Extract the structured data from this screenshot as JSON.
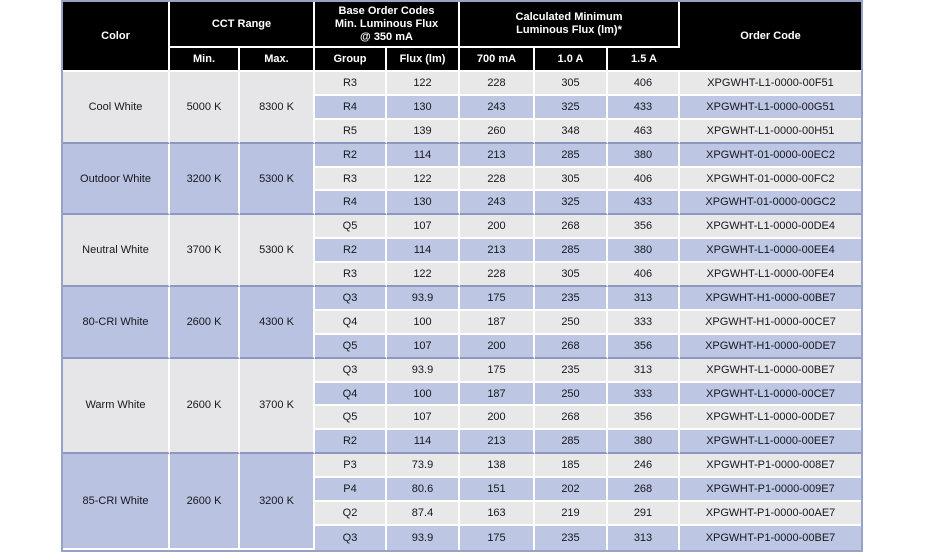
{
  "table": {
    "header": {
      "color": "Color",
      "cct_range": "CCT Range",
      "base_order_codes": "Base Order Codes\nMin. Luminous Flux\n@ 350 mA",
      "calculated_minimum": "Calculated Minimum\nLuminous Flux (lm)*",
      "order_code": "Order Code",
      "min": "Min.",
      "max": "Max.",
      "group": "Group",
      "flux_lm": "Flux (lm)",
      "a700": "700 mA",
      "a1000": "1.0 A",
      "a1500": "1.5 A"
    },
    "groups": [
      {
        "color": "Cool White",
        "cct_min": "5000 K",
        "cct_max": "8300 K",
        "rows": [
          {
            "group": "R3",
            "flux": "122",
            "f700": "228",
            "f1000": "305",
            "f1500": "406",
            "order_code": "XPGWHT-L1-0000-00F51"
          },
          {
            "group": "R4",
            "flux": "130",
            "f700": "243",
            "f1000": "325",
            "f1500": "433",
            "order_code": "XPGWHT-L1-0000-00G51"
          },
          {
            "group": "R5",
            "flux": "139",
            "f700": "260",
            "f1000": "348",
            "f1500": "463",
            "order_code": "XPGWHT-L1-0000-00H51"
          }
        ]
      },
      {
        "color": "Outdoor White",
        "cct_min": "3200 K",
        "cct_max": "5300 K",
        "rows": [
          {
            "group": "R2",
            "flux": "114",
            "f700": "213",
            "f1000": "285",
            "f1500": "380",
            "order_code": "XPGWHT-01-0000-00EC2"
          },
          {
            "group": "R3",
            "flux": "122",
            "f700": "228",
            "f1000": "305",
            "f1500": "406",
            "order_code": "XPGWHT-01-0000-00FC2"
          },
          {
            "group": "R4",
            "flux": "130",
            "f700": "243",
            "f1000": "325",
            "f1500": "433",
            "order_code": "XPGWHT-01-0000-00GC2"
          }
        ]
      },
      {
        "color": "Neutral White",
        "cct_min": "3700 K",
        "cct_max": "5300 K",
        "rows": [
          {
            "group": "Q5",
            "flux": "107",
            "f700": "200",
            "f1000": "268",
            "f1500": "356",
            "order_code": "XPGWHT-L1-0000-00DE4"
          },
          {
            "group": "R2",
            "flux": "114",
            "f700": "213",
            "f1000": "285",
            "f1500": "380",
            "order_code": "XPGWHT-L1-0000-00EE4"
          },
          {
            "group": "R3",
            "flux": "122",
            "f700": "228",
            "f1000": "305",
            "f1500": "406",
            "order_code": "XPGWHT-L1-0000-00FE4"
          }
        ]
      },
      {
        "color": "80-CRI White",
        "cct_min": "2600 K",
        "cct_max": "4300 K",
        "rows": [
          {
            "group": "Q3",
            "flux": "93.9",
            "f700": "175",
            "f1000": "235",
            "f1500": "313",
            "order_code": "XPGWHT-H1-0000-00BE7"
          },
          {
            "group": "Q4",
            "flux": "100",
            "f700": "187",
            "f1000": "250",
            "f1500": "333",
            "order_code": "XPGWHT-H1-0000-00CE7"
          },
          {
            "group": "Q5",
            "flux": "107",
            "f700": "200",
            "f1000": "268",
            "f1500": "356",
            "order_code": "XPGWHT-H1-0000-00DE7"
          }
        ]
      },
      {
        "color": "Warm White",
        "cct_min": "2600 K",
        "cct_max": "3700 K",
        "rows": [
          {
            "group": "Q3",
            "flux": "93.9",
            "f700": "175",
            "f1000": "235",
            "f1500": "313",
            "order_code": "XPGWHT-L1-0000-00BE7"
          },
          {
            "group": "Q4",
            "flux": "100",
            "f700": "187",
            "f1000": "250",
            "f1500": "333",
            "order_code": "XPGWHT-L1-0000-00CE7"
          },
          {
            "group": "Q5",
            "flux": "107",
            "f700": "200",
            "f1000": "268",
            "f1500": "356",
            "order_code": "XPGWHT-L1-0000-00DE7"
          },
          {
            "group": "R2",
            "flux": "114",
            "f700": "213",
            "f1000": "285",
            "f1500": "380",
            "order_code": "XPGWHT-L1-0000-00EE7"
          }
        ]
      },
      {
        "color": "85-CRI White",
        "cct_min": "2600 K",
        "cct_max": "3200 K",
        "rows": [
          {
            "group": "P3",
            "flux": "73.9",
            "f700": "138",
            "f1000": "185",
            "f1500": "246",
            "order_code": "XPGWHT-P1-0000-008E7"
          },
          {
            "group": "P4",
            "flux": "80.6",
            "f700": "151",
            "f1000": "202",
            "f1500": "268",
            "order_code": "XPGWHT-P1-0000-009E7"
          },
          {
            "group": "Q2",
            "flux": "87.4",
            "f700": "163",
            "f1000": "219",
            "f1500": "291",
            "order_code": "XPGWHT-P1-0000-00AE7"
          },
          {
            "group": "Q3",
            "flux": "93.9",
            "f700": "175",
            "f1000": "235",
            "f1500": "313",
            "order_code": "XPGWHT-P1-0000-00BE7"
          }
        ]
      }
    ]
  },
  "colors": {
    "header_bg": "#000000",
    "header_text": "#ffffff",
    "row_light": "#e8e8e9",
    "row_blue": "#bdc6e2",
    "group_cell_light": "#e6e6e8",
    "group_cell_blue": "#b9c2e0",
    "group_separator": "#8d98c0",
    "outer_border": "#98a2c4",
    "gridline": "#ffffff",
    "body_text": "#17171e"
  }
}
